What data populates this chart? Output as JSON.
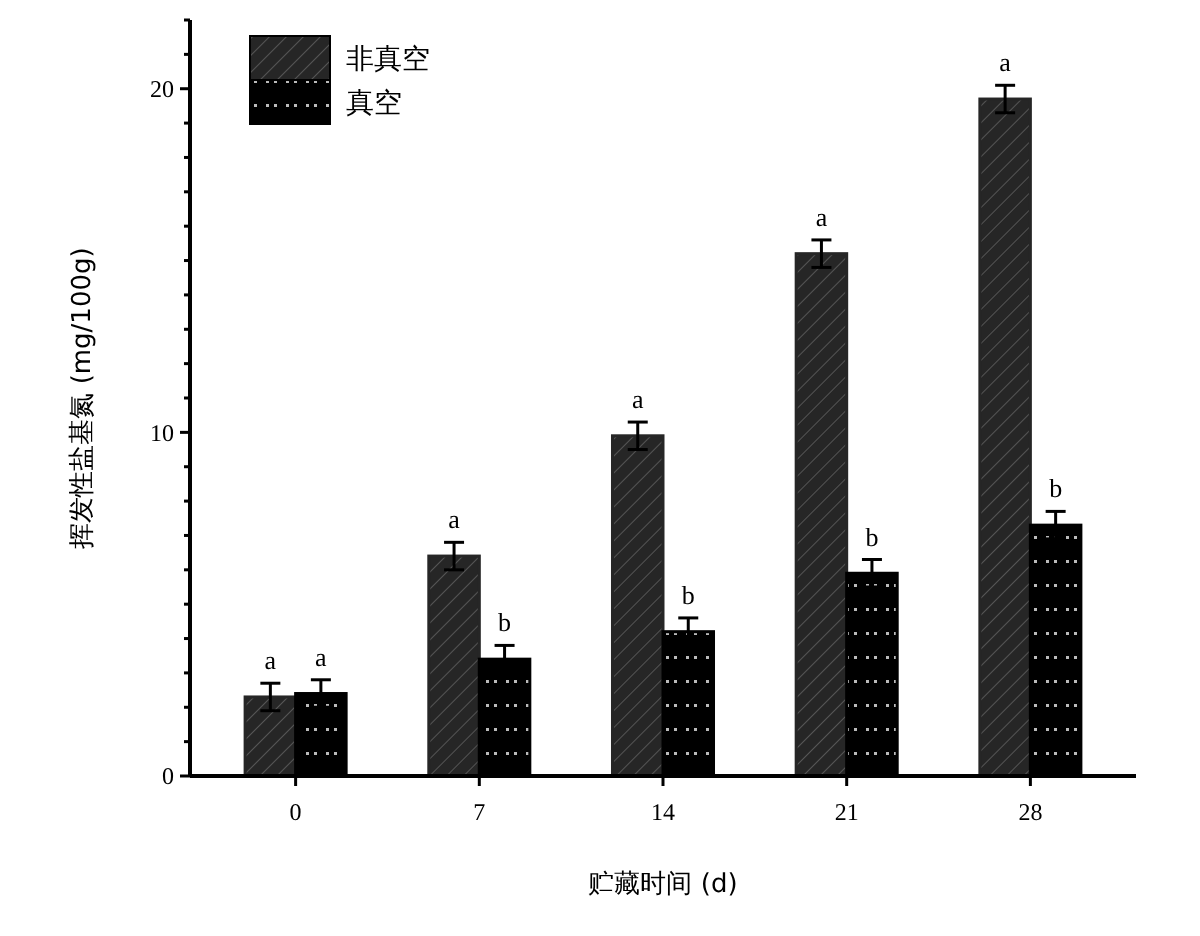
{
  "chart_data": {
    "type": "bar",
    "xlabel": "贮藏时间 (d)",
    "ylabel": "挥发性盐基氮 (mg/100g)",
    "categories": [
      "0",
      "7",
      "14",
      "21",
      "28"
    ],
    "series": [
      {
        "name": "非真空",
        "color": "#262626",
        "values": [
          2.3,
          6.4,
          9.9,
          15.2,
          19.7
        ],
        "errors": [
          0.4,
          0.4,
          0.4,
          0.4,
          0.4
        ]
      },
      {
        "name": "真空",
        "color": "#000000",
        "values": [
          2.4,
          3.4,
          4.2,
          5.9,
          7.3
        ],
        "errors": [
          0.4,
          0.4,
          0.4,
          0.4,
          0.4
        ]
      }
    ],
    "ylim": [
      0,
      22
    ],
    "yticks": [
      0,
      {
        "value": 1,
        "label": null
      },
      {
        "value": 2,
        "label": null
      },
      {
        "value": 3,
        "label": null
      },
      {
        "value": 4,
        "label": null
      },
      {
        "value": 5,
        "label": null
      },
      {
        "value": 6,
        "label": null
      },
      {
        "value": 7,
        "label": null
      },
      {
        "value": 8,
        "label": null
      },
      {
        "value": 9,
        "label": null
      },
      10,
      {
        "value": 11,
        "label": null
      },
      {
        "value": 12,
        "label": null
      },
      {
        "value": 13,
        "label": null
      },
      {
        "value": 14,
        "label": null
      },
      {
        "value": 15,
        "label": null
      },
      {
        "value": 16,
        "label": null
      },
      {
        "value": 17,
        "label": null
      },
      {
        "value": 18,
        "label": null
      },
      {
        "value": 19,
        "label": null
      },
      20,
      {
        "value": 21,
        "label": null
      },
      {
        "value": 22,
        "label": null
      }
    ],
    "annotations": [
      "a",
      "a",
      "a",
      "a",
      "a",
      "a",
      "b",
      "b",
      "b",
      "b"
    ],
    "legend": "top left",
    "grid": false
  }
}
